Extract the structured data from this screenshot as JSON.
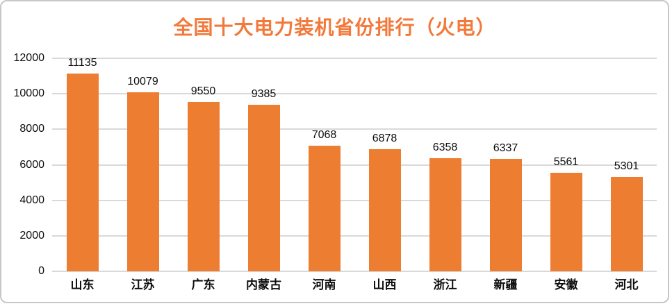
{
  "card": {
    "background_color": "#ffffff",
    "border_color": "#c7c7c7"
  },
  "chart_data": {
    "type": "bar",
    "title": "全国十大电力装机省份排行（火电）",
    "title_color": "#f2793a",
    "bar_color": "#ed7d31",
    "gridline_color": "#d9d9d9",
    "label_color": "#0d0d0d",
    "categories": [
      "山东",
      "江苏",
      "广东",
      "内蒙古",
      "河南",
      "山西",
      "浙江",
      "新疆",
      "安徽",
      "河北"
    ],
    "values": [
      11135,
      10079,
      9550,
      9385,
      7068,
      6878,
      6358,
      6337,
      5561,
      5301
    ],
    "data_labels": [
      "11135",
      "10079",
      "9550",
      "9385",
      "7068",
      "6878",
      "6358",
      "6337",
      "5561",
      "5301"
    ],
    "xlabel": "",
    "ylabel": "",
    "ylim": [
      0,
      12000
    ],
    "yticks": [
      0,
      2000,
      4000,
      6000,
      8000,
      10000,
      12000
    ],
    "ytick_labels": [
      "0",
      "2000",
      "4000",
      "6000",
      "8000",
      "10000",
      "12000"
    ],
    "grid": true,
    "legend": "none"
  }
}
